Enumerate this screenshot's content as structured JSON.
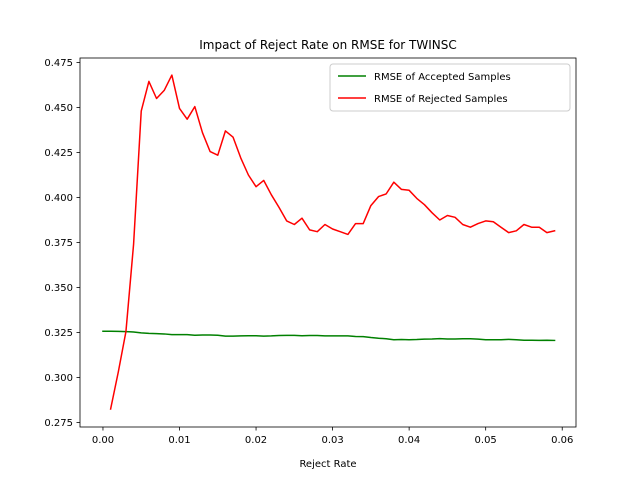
{
  "chart_data": {
    "type": "line",
    "title": "Impact of Reject Rate on RMSE for TWINSC",
    "xlabel": "Reject Rate",
    "ylabel": "",
    "xlim": [
      -0.003,
      0.0618
    ],
    "ylim": [
      0.2725,
      0.4775
    ],
    "xticks": [
      0.0,
      0.01,
      0.02,
      0.03,
      0.04,
      0.05,
      0.06
    ],
    "xtick_labels": [
      "0.00",
      "0.01",
      "0.02",
      "0.03",
      "0.04",
      "0.05",
      "0.06"
    ],
    "yticks": [
      0.275,
      0.3,
      0.325,
      0.35,
      0.375,
      0.4,
      0.425,
      0.45,
      0.475
    ],
    "ytick_labels": [
      "0.275",
      "0.300",
      "0.325",
      "0.350",
      "0.375",
      "0.400",
      "0.425",
      "0.450",
      "0.475"
    ],
    "grid": false,
    "legend_position": "top-right",
    "series": [
      {
        "name": "RMSE of Accepted Samples",
        "color": "#008000",
        "x": [
          0.0,
          0.001,
          0.002,
          0.003,
          0.004,
          0.005,
          0.006,
          0.007,
          0.008,
          0.009,
          0.01,
          0.011,
          0.012,
          0.013,
          0.014,
          0.015,
          0.016,
          0.017,
          0.018,
          0.019,
          0.02,
          0.021,
          0.022,
          0.023,
          0.024,
          0.025,
          0.026,
          0.027,
          0.028,
          0.029,
          0.03,
          0.031,
          0.032,
          0.033,
          0.034,
          0.035,
          0.036,
          0.037,
          0.038,
          0.039,
          0.04,
          0.041,
          0.042,
          0.043,
          0.044,
          0.045,
          0.046,
          0.047,
          0.048,
          0.049,
          0.05,
          0.051,
          0.052,
          0.053,
          0.054,
          0.055,
          0.056,
          0.057,
          0.058,
          0.059
        ],
        "values": [
          0.3257,
          0.3257,
          0.3256,
          0.3255,
          0.3253,
          0.3248,
          0.3245,
          0.3244,
          0.3242,
          0.3238,
          0.3238,
          0.3238,
          0.3235,
          0.3236,
          0.3236,
          0.3235,
          0.323,
          0.323,
          0.3231,
          0.3232,
          0.3232,
          0.323,
          0.3231,
          0.3233,
          0.3234,
          0.3234,
          0.3232,
          0.3233,
          0.3233,
          0.3231,
          0.3231,
          0.3231,
          0.3231,
          0.3228,
          0.3227,
          0.3222,
          0.3218,
          0.3215,
          0.321,
          0.3211,
          0.321,
          0.3211,
          0.3213,
          0.3214,
          0.3216,
          0.3214,
          0.3214,
          0.3215,
          0.3215,
          0.3213,
          0.321,
          0.321,
          0.321,
          0.3212,
          0.321,
          0.3207,
          0.3207,
          0.3206,
          0.3207,
          0.3206
        ]
      },
      {
        "name": "RMSE of Rejected Samples",
        "color": "#ff0000",
        "x": [
          0.001,
          0.002,
          0.003,
          0.004,
          0.005,
          0.006,
          0.007,
          0.008,
          0.009,
          0.01,
          0.011,
          0.012,
          0.013,
          0.014,
          0.015,
          0.016,
          0.017,
          0.018,
          0.019,
          0.02,
          0.021,
          0.022,
          0.023,
          0.024,
          0.025,
          0.026,
          0.027,
          0.028,
          0.029,
          0.03,
          0.031,
          0.032,
          0.033,
          0.034,
          0.035,
          0.036,
          0.037,
          0.038,
          0.039,
          0.04,
          0.041,
          0.042,
          0.043,
          0.044,
          0.045,
          0.046,
          0.047,
          0.048,
          0.049,
          0.05,
          0.051,
          0.052,
          0.053,
          0.054,
          0.055,
          0.056,
          0.057,
          0.058,
          0.059
        ],
        "values": [
          0.2825,
          0.303,
          0.3255,
          0.374,
          0.448,
          0.4645,
          0.455,
          0.4595,
          0.468,
          0.4495,
          0.4435,
          0.4505,
          0.436,
          0.4255,
          0.4235,
          0.437,
          0.4335,
          0.422,
          0.4125,
          0.406,
          0.4095,
          0.4015,
          0.3945,
          0.387,
          0.385,
          0.3885,
          0.382,
          0.381,
          0.385,
          0.3825,
          0.381,
          0.3795,
          0.3855,
          0.3855,
          0.3955,
          0.4005,
          0.402,
          0.4085,
          0.4045,
          0.404,
          0.3995,
          0.396,
          0.3915,
          0.3875,
          0.39,
          0.389,
          0.385,
          0.3835,
          0.3855,
          0.387,
          0.3865,
          0.3835,
          0.3805,
          0.3815,
          0.385,
          0.3835,
          0.3835,
          0.3805,
          0.3815
        ]
      }
    ]
  }
}
